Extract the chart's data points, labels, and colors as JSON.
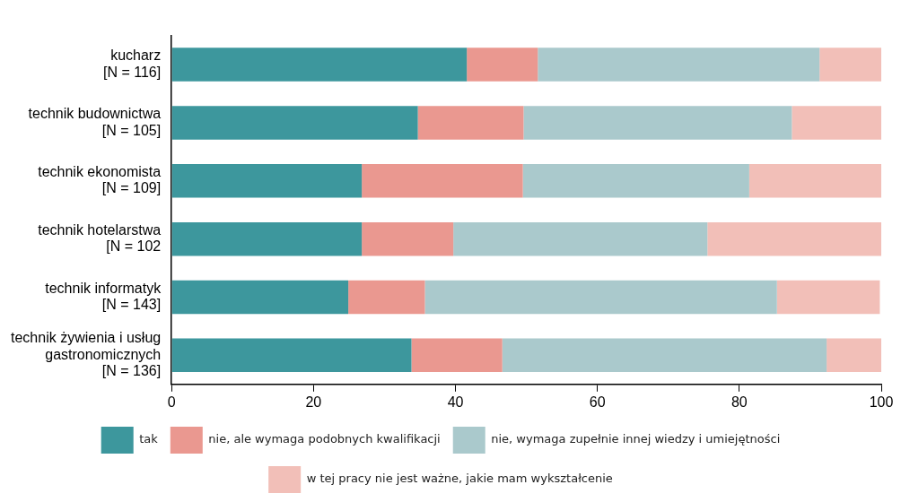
{
  "chart_data": {
    "type": "bar",
    "orientation": "horizontal",
    "stacked": true,
    "categories": [
      "kucharz\n[N = 116]",
      "technik budownictwa\n[N = 105]",
      "technik ekonomista\n[N = 109]",
      "technik hotelarstwa\n[N = 102",
      "technik informatyk\n[N = 143]",
      "technik żywienia i usług\ngastronomicznych\n[N = 136]"
    ],
    "series": [
      {
        "name": "tak",
        "color": "#3d979d",
        "values": [
          41.6,
          34.7,
          26.8,
          26.8,
          24.9,
          33.8
        ]
      },
      {
        "name": "nie, ale wymaga podobnych kwalifikacji",
        "color": "#ea9890",
        "values": [
          10.0,
          14.9,
          22.7,
          12.9,
          10.8,
          12.8
        ]
      },
      {
        "name": "nie, wymaga zupełnie innej wiedzy i umiejętności",
        "color": "#aac9cc",
        "values": [
          39.7,
          37.8,
          31.9,
          35.8,
          49.6,
          45.7
        ]
      },
      {
        "name": "w tej pracy nie jest ważne, jakie mam wykształcenie",
        "color": "#f2bfb8",
        "values": [
          8.7,
          12.6,
          18.6,
          24.5,
          14.5,
          7.7
        ]
      }
    ],
    "xlim": [
      0,
      100
    ],
    "xticks": [
      0,
      20,
      40,
      60,
      80,
      100
    ],
    "grid": false,
    "legend": "bottom"
  }
}
